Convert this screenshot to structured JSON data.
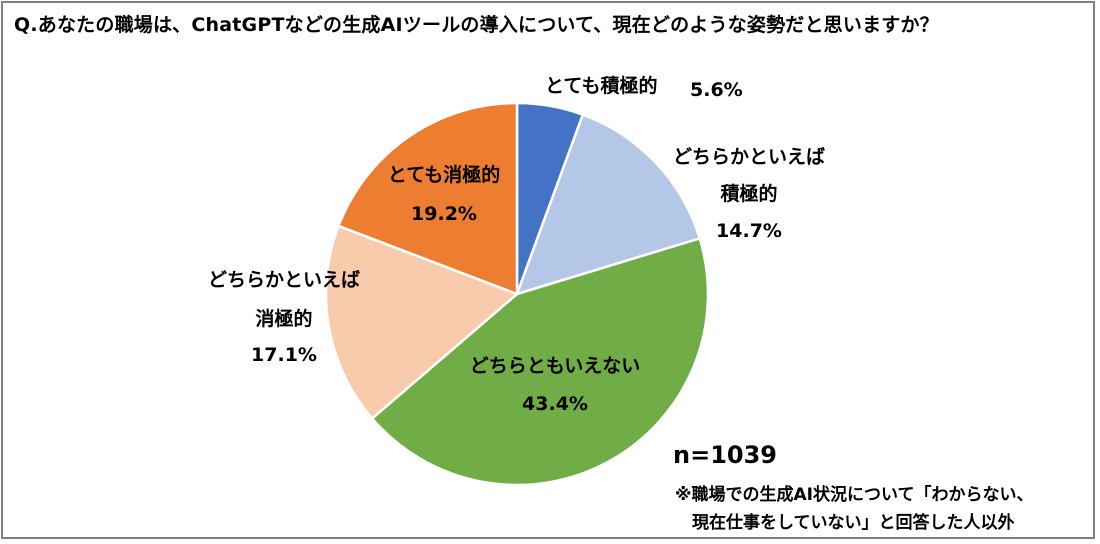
{
  "title": "Q.あなたの職場は、ChatGPTなどの生成AIツールの導入について、現在どのような姿勢だと思いますか？",
  "chart_data": {
    "type": "pie",
    "slices": [
      {
        "name": "とても積極的",
        "label_lines": [
          "とても積極的"
        ],
        "value": 5.6,
        "display": "5.6%",
        "color": "#4472c4"
      },
      {
        "name": "どちらかといえば積極的",
        "label_lines": [
          "どちらかといえば",
          "積極的"
        ],
        "value": 14.7,
        "display": "14.7%",
        "color": "#b4c7e7"
      },
      {
        "name": "どちらともいえない",
        "label_lines": [
          "どちらともいえない"
        ],
        "value": 43.4,
        "display": "43.4%",
        "color": "#70ad47"
      },
      {
        "name": "どちらかといえば消極的",
        "label_lines": [
          "どちらかといえば",
          "消極的"
        ],
        "value": 17.1,
        "display": "17.1%",
        "color": "#f8cbad"
      },
      {
        "name": "とても消極的",
        "label_lines": [
          "とても消極的"
        ],
        "value": 19.2,
        "display": "19.2%",
        "color": "#ed7d31"
      }
    ]
  },
  "footnote": {
    "n": "n=1039",
    "line1": "※職場での生成AI状況について「わからない、",
    "line2": "現在仕事をしていない」と回答した人以外"
  }
}
